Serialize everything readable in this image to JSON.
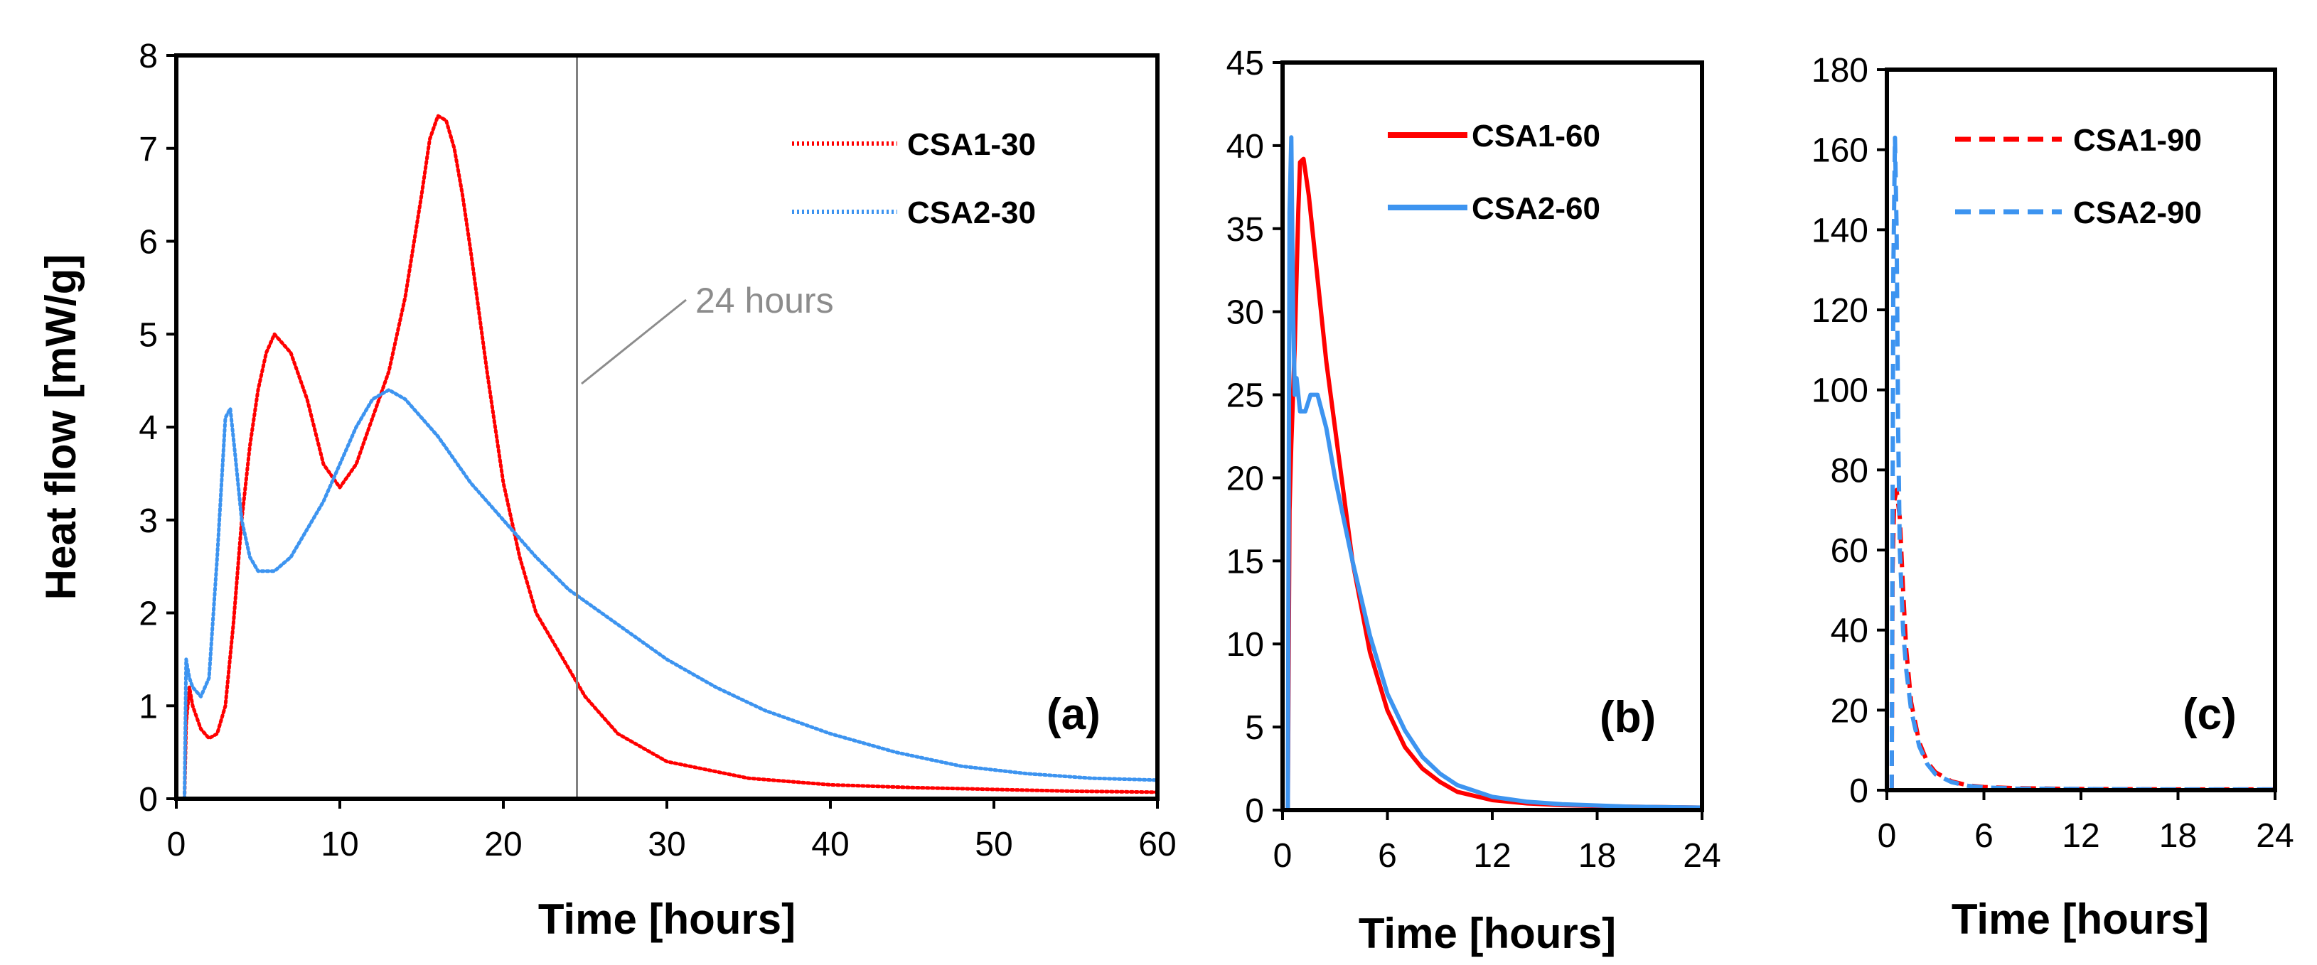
{
  "chart_data": [
    {
      "type": "line",
      "panel_label": "(a)",
      "xlabel": "Time [hours]",
      "ylabel": "Heat flow [mW/g]",
      "xlim": [
        0,
        60
      ],
      "ylim": [
        0,
        8
      ],
      "xticks": [
        "0",
        "10",
        "20",
        "30",
        "40",
        "50",
        "60"
      ],
      "yticks": [
        "0",
        "1",
        "2",
        "3",
        "4",
        "5",
        "6",
        "7",
        "8"
      ],
      "annotation": {
        "text": "24 hours",
        "x": 24.5
      },
      "series": [
        {
          "name": "CSA1-30",
          "color": "#ff0000",
          "style": "dotted",
          "x": [
            0.5,
            0.6,
            0.8,
            1.0,
            1.5,
            2.0,
            2.5,
            3.0,
            3.5,
            4.0,
            4.5,
            5.0,
            5.5,
            6.0,
            6.5,
            7.0,
            8.0,
            9.0,
            10.0,
            11.0,
            12.0,
            13.0,
            14.0,
            15.0,
            15.5,
            16.0,
            16.5,
            17.0,
            17.5,
            18.0,
            19.0,
            20.0,
            21.0,
            22.0,
            23.0,
            24.0,
            25.0,
            27.0,
            30.0,
            35.0,
            40.0,
            45.0,
            50.0,
            55.0,
            60.0
          ],
          "y": [
            0.0,
            0.8,
            1.2,
            1.0,
            0.75,
            0.65,
            0.7,
            1.0,
            1.9,
            3.0,
            3.8,
            4.4,
            4.8,
            5.0,
            4.9,
            4.8,
            4.3,
            3.6,
            3.35,
            3.6,
            4.1,
            4.6,
            5.4,
            6.5,
            7.1,
            7.35,
            7.3,
            7.0,
            6.5,
            5.9,
            4.6,
            3.4,
            2.6,
            2.0,
            1.7,
            1.4,
            1.1,
            0.7,
            0.4,
            0.22,
            0.15,
            0.12,
            0.1,
            0.08,
            0.07
          ]
        },
        {
          "name": "CSA2-30",
          "color": "#3d94f0",
          "style": "dotted",
          "x": [
            0.5,
            0.6,
            0.8,
            1.0,
            1.5,
            2.0,
            2.5,
            3.0,
            3.3,
            3.6,
            4.0,
            4.5,
            5.0,
            6.0,
            7.0,
            8.0,
            9.0,
            10.0,
            11.0,
            12.0,
            13.0,
            14.0,
            15.0,
            16.0,
            18.0,
            20.0,
            22.0,
            24.0,
            26.0,
            28.0,
            30.0,
            33.0,
            36.0,
            40.0,
            44.0,
            48.0,
            52.0,
            56.0,
            60.0
          ],
          "y": [
            0.0,
            1.5,
            1.3,
            1.2,
            1.1,
            1.3,
            2.6,
            4.1,
            4.2,
            3.7,
            3.0,
            2.6,
            2.45,
            2.45,
            2.6,
            2.9,
            3.2,
            3.6,
            4.0,
            4.3,
            4.4,
            4.3,
            4.1,
            3.9,
            3.4,
            3.0,
            2.6,
            2.25,
            2.0,
            1.75,
            1.5,
            1.2,
            0.95,
            0.7,
            0.5,
            0.35,
            0.27,
            0.22,
            0.2
          ]
        }
      ]
    },
    {
      "type": "line",
      "panel_label": "(b)",
      "xlabel": "Time [hours]",
      "ylabel": "",
      "xlim": [
        0,
        24
      ],
      "ylim": [
        0,
        45
      ],
      "xticks": [
        "0",
        "6",
        "12",
        "18",
        "24"
      ],
      "yticks": [
        "0",
        "5",
        "10",
        "15",
        "20",
        "25",
        "30",
        "35",
        "40",
        "45"
      ],
      "series": [
        {
          "name": "CSA1-60",
          "color": "#ff0000",
          "style": "solid",
          "x": [
            0.3,
            0.4,
            0.5,
            0.7,
            0.9,
            1.0,
            1.2,
            1.5,
            2.0,
            2.5,
            3.0,
            4.0,
            5.0,
            6.0,
            7.0,
            8.0,
            9.0,
            10.0,
            12.0,
            14.0,
            16.0,
            20.0,
            24.0
          ],
          "y": [
            0.0,
            18.0,
            22.0,
            28.0,
            36.0,
            39.0,
            39.2,
            37.0,
            32.0,
            27.0,
            23.0,
            15.0,
            9.5,
            6.0,
            3.8,
            2.5,
            1.7,
            1.1,
            0.6,
            0.4,
            0.3,
            0.2,
            0.15
          ]
        },
        {
          "name": "CSA2-60",
          "color": "#3d94f0",
          "style": "solid",
          "x": [
            0.3,
            0.4,
            0.5,
            0.6,
            0.7,
            0.8,
            1.0,
            1.3,
            1.6,
            2.0,
            2.5,
            3.0,
            4.0,
            5.0,
            6.0,
            7.0,
            8.0,
            9.0,
            10.0,
            12.0,
            14.0,
            16.0,
            20.0,
            24.0
          ],
          "y": [
            0.0,
            36.0,
            40.5,
            30.0,
            25.0,
            26.0,
            24.0,
            24.0,
            25.0,
            25.0,
            23.0,
            20.0,
            15.0,
            10.5,
            7.0,
            4.8,
            3.2,
            2.2,
            1.5,
            0.8,
            0.5,
            0.35,
            0.2,
            0.15
          ]
        }
      ]
    },
    {
      "type": "line",
      "panel_label": "(c)",
      "xlabel": "Time [hours]",
      "ylabel": "",
      "xlim": [
        0,
        24
      ],
      "ylim": [
        0,
        180
      ],
      "xticks": [
        "0",
        "6",
        "12",
        "18",
        "24"
      ],
      "yticks": [
        "0",
        "20",
        "40",
        "60",
        "80",
        "100",
        "120",
        "140",
        "160",
        "180"
      ],
      "series": [
        {
          "name": "CSA1-90",
          "color": "#ff0000",
          "style": "dashed",
          "x": [
            0.3,
            0.35,
            0.45,
            0.6,
            0.8,
            1.0,
            1.2,
            1.5,
            2.0,
            2.5,
            3.0,
            4.0,
            5.0,
            6.0,
            8.0,
            12.0,
            18.0,
            24.0
          ],
          "y": [
            0.0,
            55.0,
            72.0,
            75.0,
            68.0,
            50.0,
            35.0,
            22.0,
            12.0,
            7.0,
            4.5,
            2.2,
            1.2,
            0.8,
            0.5,
            0.3,
            0.2,
            0.2
          ]
        },
        {
          "name": "CSA2-90",
          "color": "#3d94f0",
          "style": "dashed",
          "x": [
            0.3,
            0.4,
            0.5,
            0.6,
            0.7,
            0.8,
            1.0,
            1.2,
            1.5,
            2.0,
            2.5,
            3.0,
            4.0,
            5.0,
            6.0,
            8.0,
            12.0,
            18.0,
            24.0
          ],
          "y": [
            0.0,
            130.0,
            163.0,
            140.0,
            90.0,
            60.0,
            40.0,
            30.0,
            20.0,
            11.0,
            6.5,
            4.0,
            2.0,
            1.1,
            0.7,
            0.4,
            0.3,
            0.2,
            0.2
          ]
        }
      ]
    }
  ]
}
